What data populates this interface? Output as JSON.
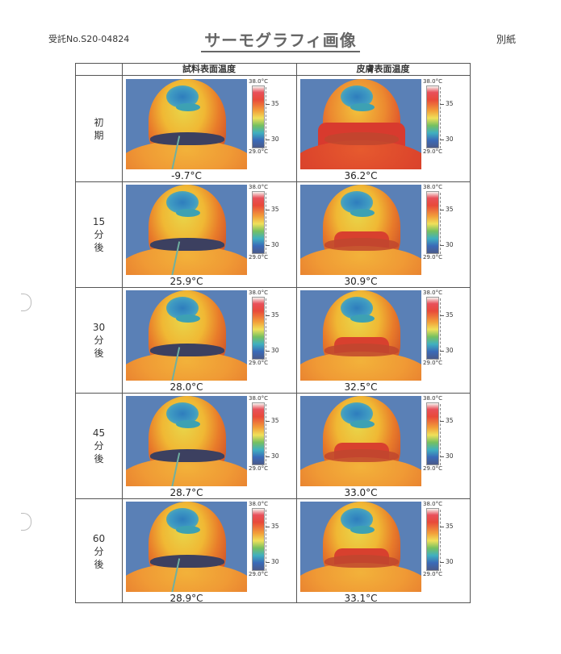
{
  "header": {
    "receipt": "受託No.S20-04824",
    "title": "サーモグラフィ画像",
    "annex": "別紙"
  },
  "columns": [
    "試料表面温度",
    "皮膚表面温度"
  ],
  "scale": {
    "max": "38.0°C",
    "min": "29.0°C",
    "mid_high": "35",
    "mid_low": "30"
  },
  "rows": [
    {
      "label": "初\n期",
      "sample_temp": "-9.7°C",
      "skin_temp": "36.2°C"
    },
    {
      "label": "15\n分\n後",
      "sample_temp": "25.9°C",
      "skin_temp": "30.9°C"
    },
    {
      "label": "30\n分\n後",
      "sample_temp": "28.0°C",
      "skin_temp": "32.5°C"
    },
    {
      "label": "45\n分\n後",
      "sample_temp": "28.7°C",
      "skin_temp": "33.0°C"
    },
    {
      "label": "60\n分\n後",
      "sample_temp": "28.9°C",
      "skin_temp": "33.1°C"
    }
  ]
}
